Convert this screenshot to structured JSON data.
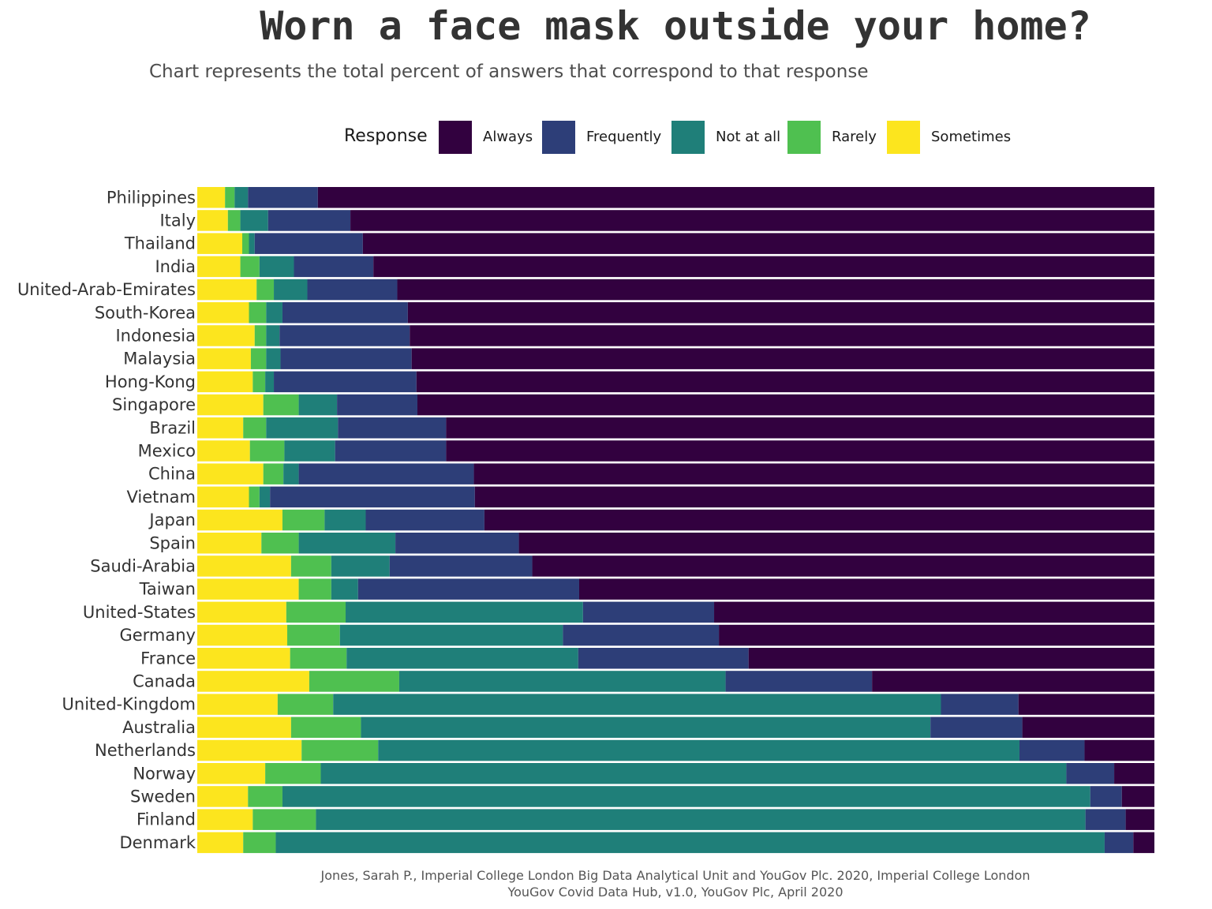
{
  "chart_data": {
    "type": "bar",
    "orientation": "horizontal",
    "stacked": true,
    "normalized": true,
    "title": "Worn a face mask outside your home?",
    "subtitle": "Chart represents the total percent of answers that correspond to that response",
    "caption": [
      "Jones, Sarah P., Imperial College London Big Data Analytical Unit and YouGov Plc. 2020, Imperial College London",
      "YouGov Covid Data Hub, v1.0, YouGov Plc, April 2020"
    ],
    "legend": {
      "title": "Response",
      "placement": "top"
    },
    "grid": false,
    "xlim": [
      0,
      100
    ],
    "categories": [
      "Philippines",
      "Italy",
      "Thailand",
      "India",
      "United-Arab-Emirates",
      "South-Korea",
      "Indonesia",
      "Malaysia",
      "Hong-Kong",
      "Singapore",
      "Brazil",
      "Mexico",
      "China",
      "Vietnam",
      "Japan",
      "Spain",
      "Saudi-Arabia",
      "Taiwan",
      "United-States",
      "Germany",
      "France",
      "Canada",
      "United-Kingdom",
      "Australia",
      "Netherlands",
      "Norway",
      "Sweden",
      "Finland",
      "Denmark"
    ],
    "stack_order": [
      "Sometimes",
      "Rarely",
      "Not at all",
      "Frequently",
      "Always"
    ],
    "series": [
      {
        "name": "Always",
        "color": "#32013f",
        "values": [
          87.4,
          84.0,
          82.7,
          81.6,
          79.1,
          78.0,
          77.8,
          77.6,
          77.1,
          77.0,
          74.0,
          74.0,
          71.1,
          71.0,
          70.0,
          66.4,
          65.0,
          60.1,
          46.0,
          45.5,
          42.4,
          29.5,
          14.2,
          13.8,
          7.3,
          4.2,
          3.4,
          3.0,
          2.2
        ]
      },
      {
        "name": "Frequently",
        "color": "#2d3e78",
        "values": [
          7.3,
          8.6,
          11.3,
          8.3,
          9.4,
          13.1,
          13.6,
          13.7,
          14.9,
          8.4,
          11.3,
          11.6,
          18.3,
          21.4,
          12.4,
          12.9,
          14.9,
          23.1,
          13.7,
          16.3,
          17.8,
          15.3,
          8.1,
          9.6,
          6.8,
          5.0,
          3.3,
          4.2,
          3.0
        ]
      },
      {
        "name": "Not at all",
        "color": "#1f7f79",
        "values": [
          1.4,
          2.9,
          0.6,
          3.6,
          3.5,
          1.7,
          1.4,
          1.5,
          0.9,
          4.0,
          7.5,
          5.3,
          1.6,
          1.1,
          4.3,
          10.1,
          6.1,
          2.8,
          24.8,
          23.3,
          24.2,
          34.1,
          63.5,
          59.5,
          67.0,
          77.9,
          84.4,
          80.4,
          86.6
        ]
      },
      {
        "name": "Rarely",
        "color": "#4fc050",
        "values": [
          1.0,
          1.3,
          0.7,
          2.0,
          1.8,
          1.8,
          1.2,
          1.6,
          1.3,
          3.7,
          2.4,
          3.6,
          2.1,
          1.1,
          4.4,
          3.9,
          4.2,
          3.4,
          6.2,
          5.5,
          5.9,
          9.4,
          5.8,
          7.3,
          8.0,
          5.8,
          3.6,
          6.6,
          3.4
        ]
      },
      {
        "name": "Sometimes",
        "color": "#fce51e",
        "values": [
          2.9,
          3.2,
          4.7,
          4.5,
          6.2,
          5.4,
          6.0,
          5.6,
          5.8,
          6.9,
          4.8,
          5.5,
          6.9,
          5.4,
          8.9,
          6.7,
          9.8,
          10.6,
          9.3,
          9.4,
          9.7,
          11.7,
          8.4,
          9.8,
          10.9,
          7.1,
          5.3,
          5.8,
          4.8
        ]
      }
    ]
  }
}
